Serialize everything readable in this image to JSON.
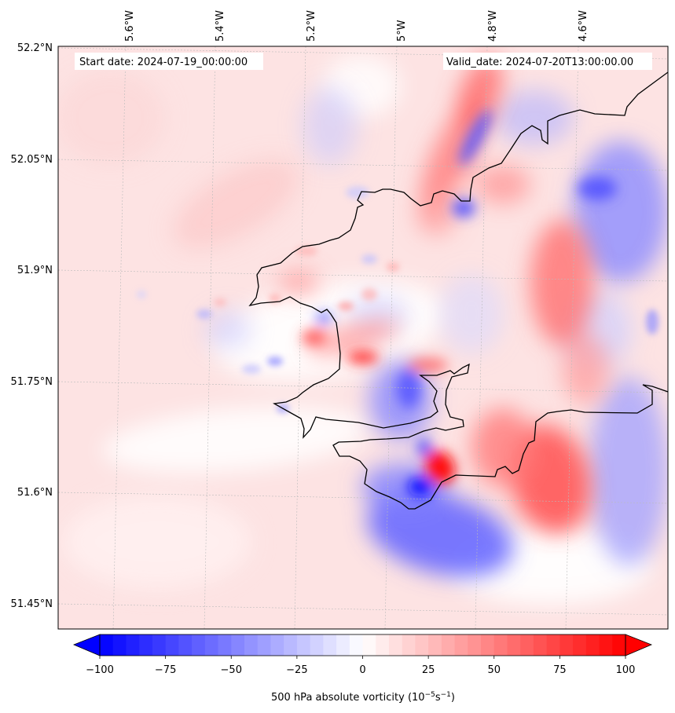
{
  "map": {
    "start_date": "Start date: 2024-07-19_00:00:00",
    "valid_date": "Valid_date: 2024-07-20T13:00:00.00",
    "lat_labels": [
      "52.2°N",
      "52.05°N",
      "51.9°N",
      "51.75°N",
      "51.6°N",
      "51.45°N"
    ],
    "lon_labels": [
      "5.6°W",
      "5.4°W",
      "5.2°W",
      "5°W",
      "4.8°W",
      "4.6°W"
    ],
    "field": "500 hPa absolute vorticity",
    "colors": {
      "negative": "#0000ff",
      "zero": "#ffffff",
      "positive": "#ff0000",
      "coast": "#000000",
      "grid": "#bbbbbb"
    }
  },
  "colorbar": {
    "label_main": "500 hPa absolute vorticity (10",
    "label_exp1": "−5",
    "label_mid": "s",
    "label_exp2": "−1",
    "label_end": ")",
    "vmin": -100,
    "vmax": 100,
    "levels": 40,
    "extend": "both",
    "ticks": [
      "−100",
      "−75",
      "−50",
      "−25",
      "0",
      "25",
      "50",
      "75",
      "100"
    ]
  }
}
